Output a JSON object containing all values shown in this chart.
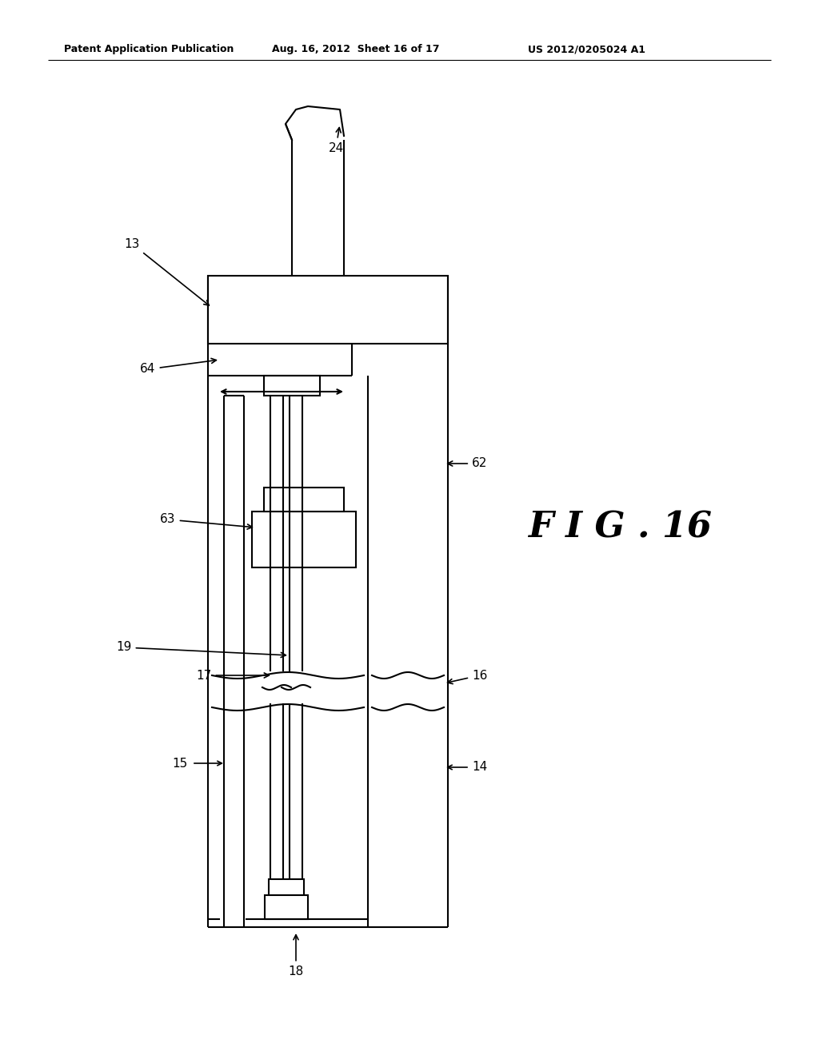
{
  "bg_color": "#ffffff",
  "line_color": "#000000",
  "header_text": "Patent Application Publication",
  "header_date": "Aug. 16, 2012  Sheet 16 of 17",
  "header_patent": "US 2012/0205024 A1",
  "fig_label": "F I G . 16"
}
